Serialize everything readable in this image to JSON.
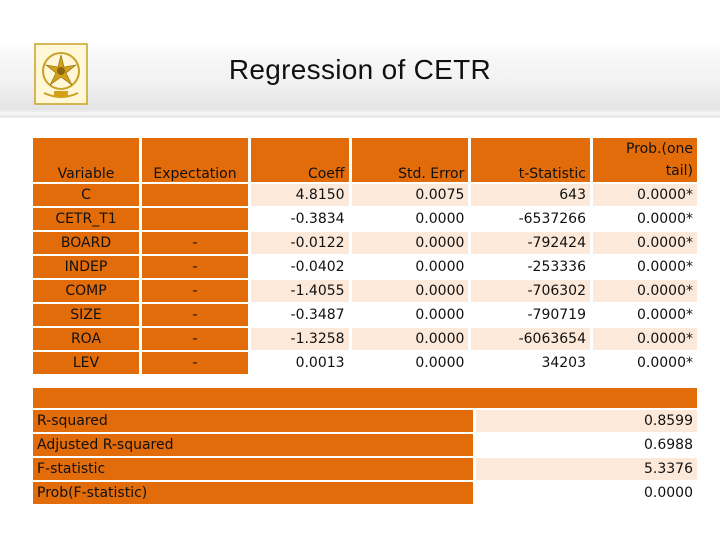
{
  "title": "Regression of CETR",
  "table": {
    "headers": [
      "Variable",
      "Expectation",
      "Coeff",
      "Std. Error",
      "t-Statistic",
      "Prob.(one tail)"
    ],
    "rows": [
      {
        "variable": "C",
        "expectation": "",
        "coeff": "4.8150",
        "std_error": "0.0075",
        "t_stat": "643",
        "prob": "0.0000*"
      },
      {
        "variable": "CETR_T1",
        "expectation": "",
        "coeff": "-0.3834",
        "std_error": "0.0000",
        "t_stat": "-6537266",
        "prob": "0.0000*"
      },
      {
        "variable": "BOARD",
        "expectation": "-",
        "coeff": "-0.0122",
        "std_error": "0.0000",
        "t_stat": "-792424",
        "prob": "0.0000*"
      },
      {
        "variable": "INDEP",
        "expectation": "-",
        "coeff": "-0.0402",
        "std_error": "0.0000",
        "t_stat": "-253336",
        "prob": "0.0000*"
      },
      {
        "variable": "COMP",
        "expectation": "-",
        "coeff": "-1.4055",
        "std_error": "0.0000",
        "t_stat": "-706302",
        "prob": "0.0000*"
      },
      {
        "variable": "SIZE",
        "expectation": "-",
        "coeff": "-0.3487",
        "std_error": "0.0000",
        "t_stat": "-790719",
        "prob": "0.0000*"
      },
      {
        "variable": "ROA",
        "expectation": "-",
        "coeff": "-1.3258",
        "std_error": "0.0000",
        "t_stat": "-6063654",
        "prob": "0.0000*"
      },
      {
        "variable": "LEV",
        "expectation": "-",
        "coeff": "0.0013",
        "std_error": "0.0000",
        "t_stat": "34203",
        "prob": "0.0000*"
      }
    ]
  },
  "stats": [
    {
      "label": "R-squared",
      "value": "0.8599"
    },
    {
      "label": "Adjusted R-squared",
      "value": "0.6988"
    },
    {
      "label": "F-statistic",
      "value": "5.3376"
    },
    {
      "label": "Prob(F-statistic)",
      "value": "0.0000"
    }
  ],
  "colors": {
    "orange": "#e36c0a",
    "light": "#fde9d9"
  }
}
